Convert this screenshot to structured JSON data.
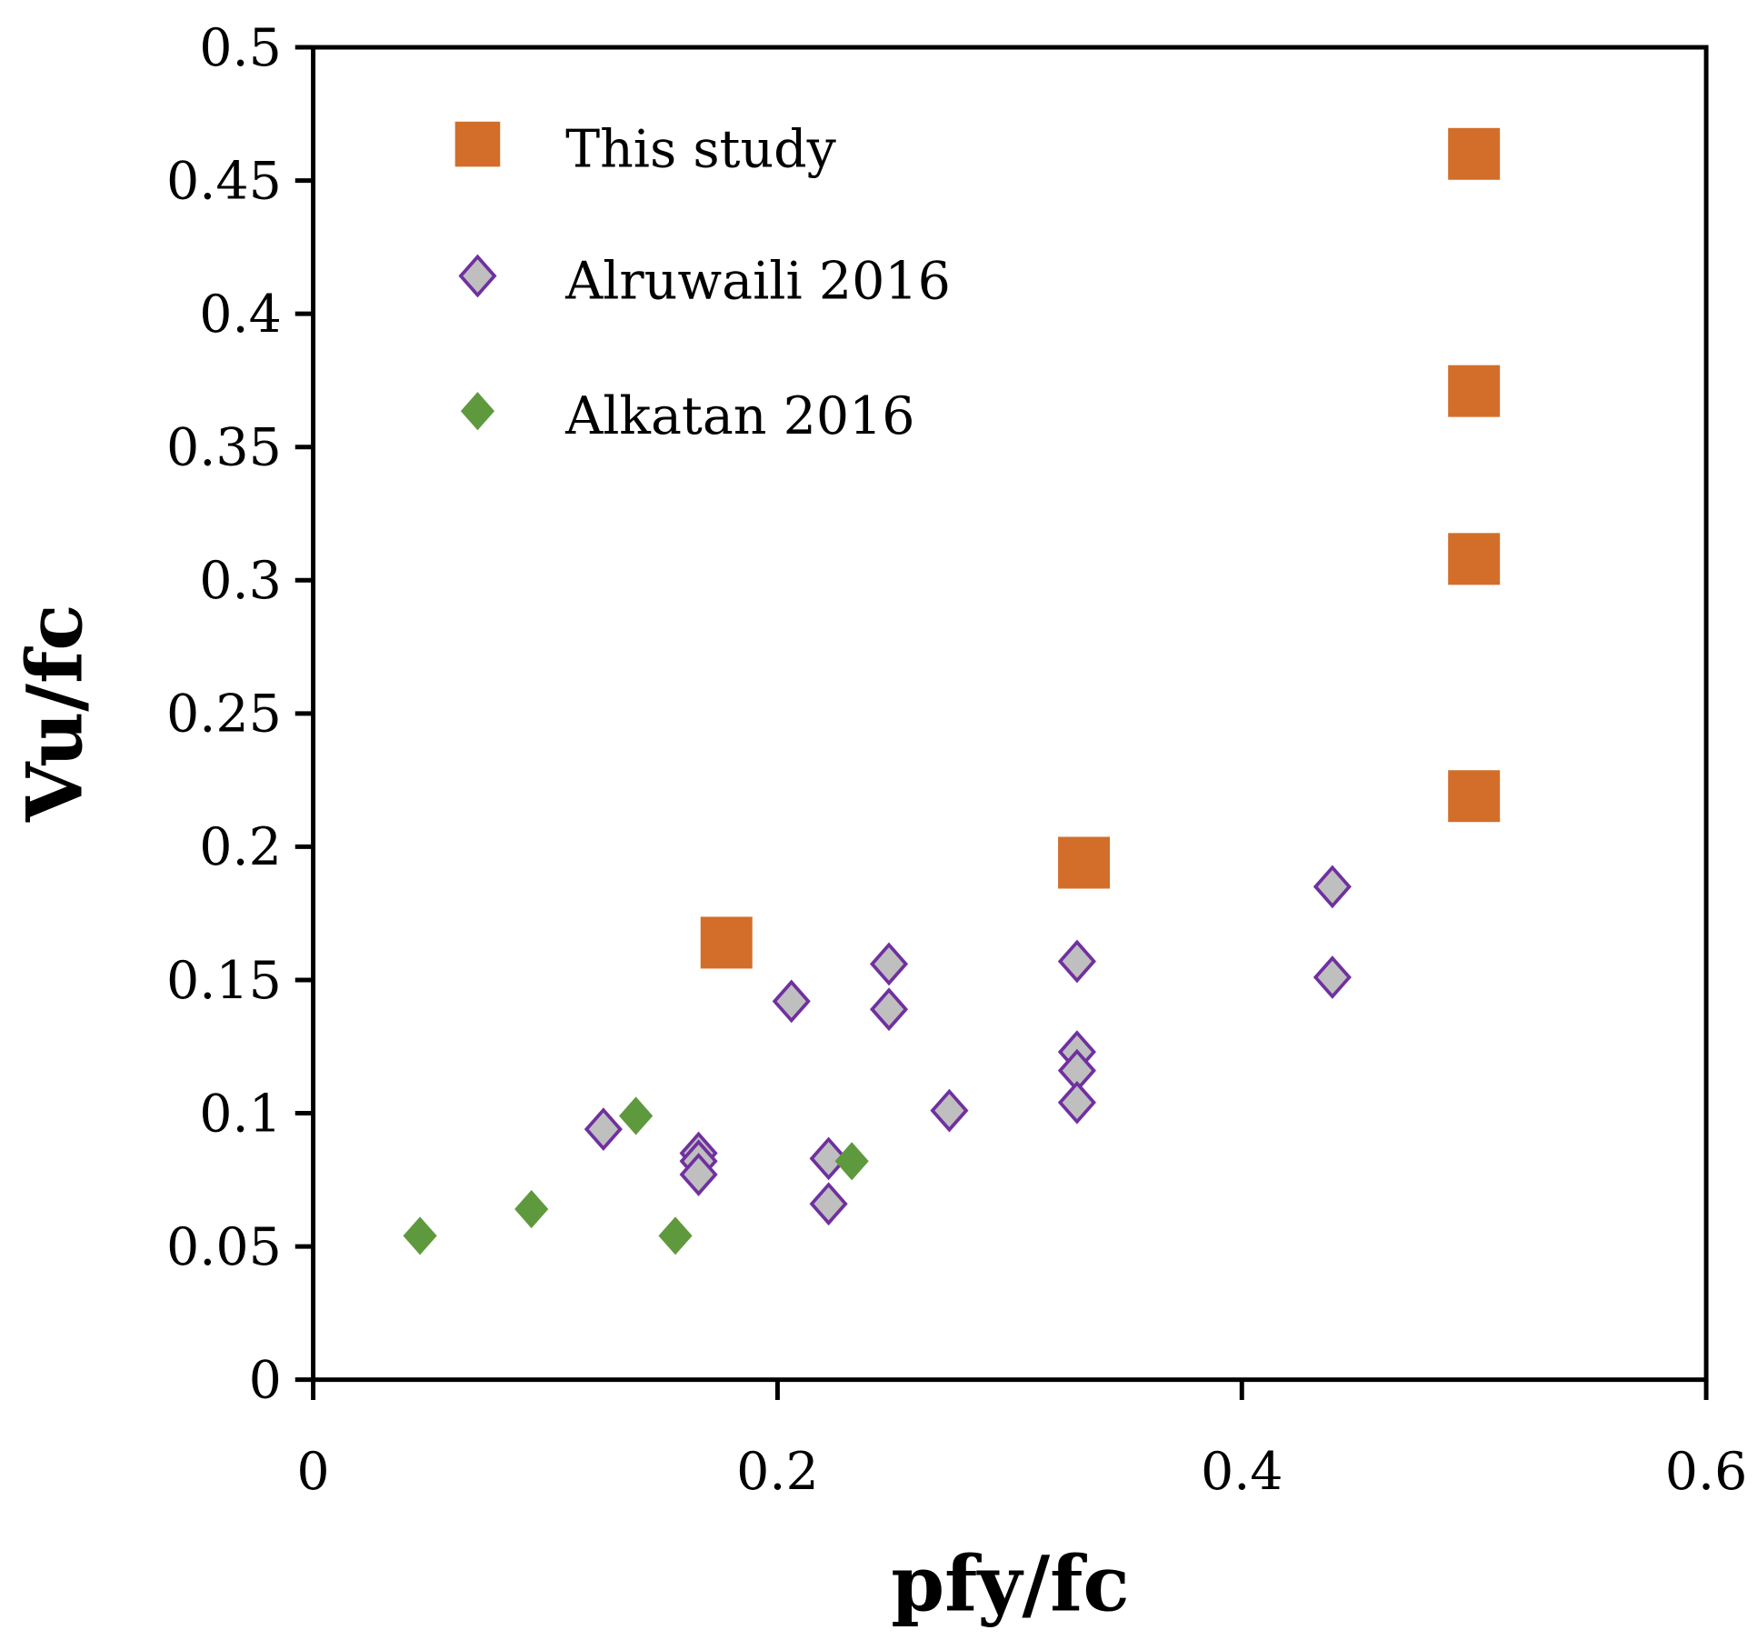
{
  "chart_data": {
    "type": "scatter",
    "title": "",
    "xlabel": "pfy/fc",
    "ylabel": "Vu/fc",
    "xlim": [
      0,
      0.6
    ],
    "ylim": [
      0,
      0.5
    ],
    "xticks": [
      "0",
      "0.2",
      "0.4",
      "0.6"
    ],
    "yticks": [
      "0",
      "0.05",
      "0.1",
      "0.15",
      "0.2",
      "0.25",
      "0.3",
      "0.35",
      "0.4",
      "0.45",
      "0.5"
    ],
    "grid": false,
    "legend_position": "top-left",
    "series": [
      {
        "name": "This study",
        "marker": "square",
        "color": "#D26E2A",
        "points": [
          [
            0.178,
            0.164
          ],
          [
            0.332,
            0.194
          ],
          [
            0.5,
            0.219
          ],
          [
            0.5,
            0.308
          ],
          [
            0.5,
            0.371
          ],
          [
            0.5,
            0.46
          ]
        ]
      },
      {
        "name": "Alruwaili 2016",
        "marker": "diamond-open",
        "color": "#7030A0",
        "fill": "#BFBFBF",
        "points": [
          [
            0.125,
            0.094
          ],
          [
            0.166,
            0.085
          ],
          [
            0.166,
            0.082
          ],
          [
            0.166,
            0.077
          ],
          [
            0.206,
            0.142
          ],
          [
            0.222,
            0.083
          ],
          [
            0.222,
            0.066
          ],
          [
            0.248,
            0.156
          ],
          [
            0.248,
            0.139
          ],
          [
            0.274,
            0.101
          ],
          [
            0.329,
            0.157
          ],
          [
            0.329,
            0.123
          ],
          [
            0.329,
            0.116
          ],
          [
            0.329,
            0.104
          ],
          [
            0.439,
            0.185
          ],
          [
            0.439,
            0.151
          ]
        ]
      },
      {
        "name": "Alkatan 2016",
        "marker": "diamond",
        "color": "#5F993D",
        "points": [
          [
            0.046,
            0.054
          ],
          [
            0.094,
            0.064
          ],
          [
            0.139,
            0.099
          ],
          [
            0.156,
            0.054
          ],
          [
            0.232,
            0.082
          ]
        ]
      }
    ]
  }
}
